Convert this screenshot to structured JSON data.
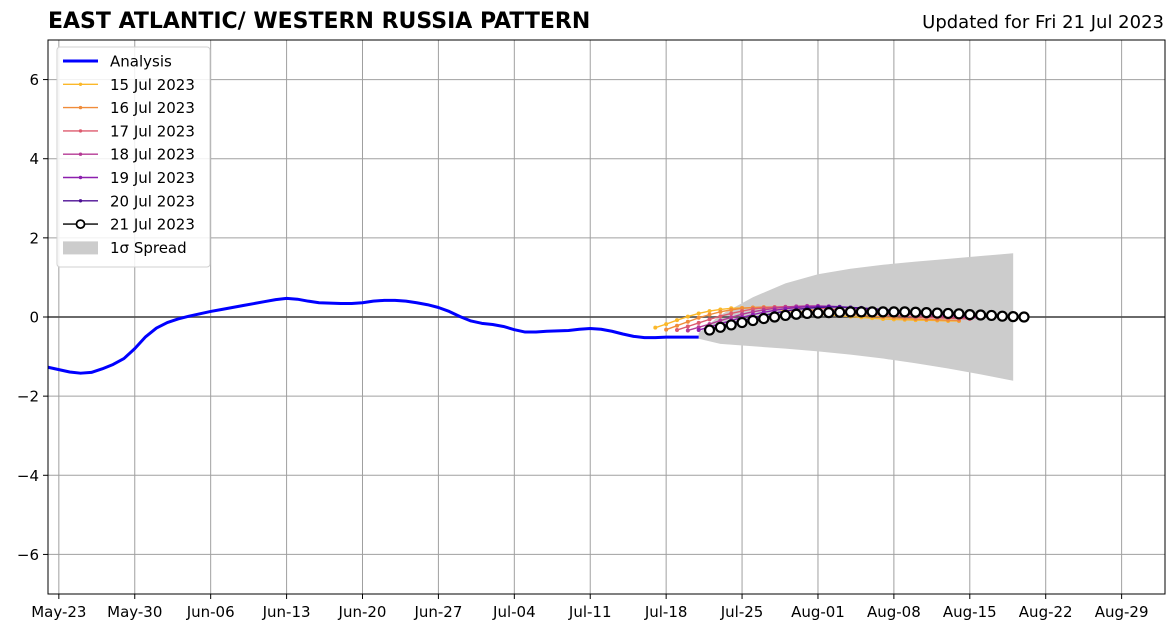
{
  "chart_data": {
    "type": "line",
    "title": "EAST ATLANTIC/ WESTERN RUSSIA PATTERN",
    "subtitle": "Updated for Fri 21 Jul 2023",
    "xlabel": "",
    "ylabel": "",
    "ylim": [
      -7,
      7
    ],
    "xlim": [
      "2023-05-22",
      "2023-09-02"
    ],
    "y_ticks": [
      -6,
      -4,
      -2,
      0,
      2,
      4,
      6
    ],
    "y_tick_labels": [
      "−6",
      "−4",
      "−2",
      "0",
      "2",
      "4",
      "6"
    ],
    "x_ticks": [
      "2023-05-23",
      "2023-05-30",
      "2023-06-06",
      "2023-06-13",
      "2023-06-20",
      "2023-06-27",
      "2023-07-04",
      "2023-07-11",
      "2023-07-18",
      "2023-07-25",
      "2023-08-01",
      "2023-08-08",
      "2023-08-15",
      "2023-08-22",
      "2023-08-29"
    ],
    "x_tick_labels": [
      "May-23",
      "May-30",
      "Jun-06",
      "Jun-13",
      "Jun-20",
      "Jun-27",
      "Jul-04",
      "Jul-11",
      "Jul-18",
      "Jul-25",
      "Aug-01",
      "Aug-08",
      "Aug-15",
      "Aug-22",
      "Aug-29"
    ],
    "grid": true,
    "legend_position": "top-left",
    "analysis": {
      "name": "Analysis",
      "color": "#0000ff",
      "x": [
        "2023-05-22",
        "2023-05-23",
        "2023-05-24",
        "2023-05-25",
        "2023-05-26",
        "2023-05-27",
        "2023-05-28",
        "2023-05-29",
        "2023-05-30",
        "2023-05-31",
        "2023-06-01",
        "2023-06-02",
        "2023-06-03",
        "2023-06-04",
        "2023-06-05",
        "2023-06-06",
        "2023-06-07",
        "2023-06-08",
        "2023-06-09",
        "2023-06-10",
        "2023-06-11",
        "2023-06-12",
        "2023-06-13",
        "2023-06-14",
        "2023-06-15",
        "2023-06-16",
        "2023-06-17",
        "2023-06-18",
        "2023-06-19",
        "2023-06-20",
        "2023-06-21",
        "2023-06-22",
        "2023-06-23",
        "2023-06-24",
        "2023-06-25",
        "2023-06-26",
        "2023-06-27",
        "2023-06-28",
        "2023-06-29",
        "2023-06-30",
        "2023-07-01",
        "2023-07-02",
        "2023-07-03",
        "2023-07-04",
        "2023-07-05",
        "2023-07-06",
        "2023-07-07",
        "2023-07-08",
        "2023-07-09",
        "2023-07-10",
        "2023-07-11",
        "2023-07-12",
        "2023-07-13",
        "2023-07-14",
        "2023-07-15",
        "2023-07-16",
        "2023-07-17",
        "2023-07-18",
        "2023-07-19",
        "2023-07-20",
        "2023-07-21"
      ],
      "values": [
        -1.27,
        -1.33,
        -1.39,
        -1.42,
        -1.4,
        -1.31,
        -1.2,
        -1.05,
        -0.8,
        -0.5,
        -0.28,
        -0.14,
        -0.05,
        0.02,
        0.08,
        0.14,
        0.19,
        0.24,
        0.29,
        0.34,
        0.39,
        0.44,
        0.47,
        0.45,
        0.4,
        0.36,
        0.35,
        0.34,
        0.34,
        0.36,
        0.4,
        0.42,
        0.42,
        0.4,
        0.36,
        0.31,
        0.24,
        0.14,
        0.01,
        -0.1,
        -0.16,
        -0.19,
        -0.24,
        -0.32,
        -0.38,
        -0.38,
        -0.36,
        -0.35,
        -0.34,
        -0.31,
        -0.29,
        -0.31,
        -0.36,
        -0.43,
        -0.49,
        -0.52,
        -0.52,
        -0.51,
        -0.51,
        -0.51,
        -0.51
      ]
    },
    "forecasts": [
      {
        "name": "15 Jul 2023",
        "color": "#fbb829",
        "start": "2023-07-17",
        "values": [
          -0.27,
          -0.18,
          -0.08,
          0.01,
          0.09,
          0.15,
          0.19,
          0.22,
          0.23,
          0.23,
          0.22,
          0.2,
          0.17,
          0.14,
          0.11,
          0.08,
          0.05,
          0.03,
          0.01,
          -0.01,
          -0.03,
          -0.05,
          -0.06,
          -0.07,
          -0.08,
          -0.08,
          -0.09,
          -0.1,
          -0.1
        ]
      },
      {
        "name": "16 Jul 2023",
        "color": "#f08c3a",
        "start": "2023-07-18",
        "values": [
          -0.32,
          -0.22,
          -0.12,
          -0.02,
          0.06,
          0.13,
          0.18,
          0.22,
          0.24,
          0.25,
          0.25,
          0.24,
          0.22,
          0.19,
          0.16,
          0.13,
          0.1,
          0.07,
          0.04,
          0.02,
          0.0,
          -0.02,
          -0.04,
          -0.05,
          -0.06,
          -0.07,
          -0.08,
          -0.09
        ]
      },
      {
        "name": "17 Jul 2023",
        "color": "#dd5a6e",
        "start": "2023-07-19",
        "values": [
          -0.33,
          -0.24,
          -0.15,
          -0.06,
          0.02,
          0.09,
          0.15,
          0.2,
          0.23,
          0.25,
          0.26,
          0.26,
          0.25,
          0.23,
          0.21,
          0.18,
          0.15,
          0.12,
          0.09,
          0.06,
          0.04,
          0.02,
          0.0,
          -0.01,
          -0.02,
          -0.03,
          -0.04,
          -0.05
        ]
      },
      {
        "name": "18 Jul 2023",
        "color": "#b53a95",
        "start": "2023-07-20",
        "values": [
          -0.34,
          -0.26,
          -0.18,
          -0.09,
          -0.01,
          0.07,
          0.13,
          0.18,
          0.22,
          0.25,
          0.27,
          0.28,
          0.28,
          0.27,
          0.25,
          0.23,
          0.2,
          0.17,
          0.14,
          0.11,
          0.08,
          0.06,
          0.04,
          0.02,
          0.01,
          0.0,
          -0.01,
          -0.02
        ]
      },
      {
        "name": "19 Jul 2023",
        "color": "#8c1fae",
        "start": "2023-07-21",
        "values": [
          -0.33,
          -0.25,
          -0.17,
          -0.09,
          -0.01,
          0.06,
          0.12,
          0.17,
          0.21,
          0.24,
          0.26,
          0.27,
          0.27,
          0.26,
          0.24,
          0.22,
          0.19,
          0.17,
          0.14,
          0.12,
          0.1,
          0.08,
          0.06,
          0.05,
          0.04,
          0.03,
          0.02,
          0.01
        ]
      },
      {
        "name": "20 Jul 2023",
        "color": "#4d0f94",
        "start": "2023-07-22",
        "values": [
          -0.3,
          -0.23,
          -0.16,
          -0.09,
          -0.02,
          0.04,
          0.1,
          0.15,
          0.19,
          0.22,
          0.24,
          0.25,
          0.25,
          0.24,
          0.23,
          0.21,
          0.19,
          0.17,
          0.15,
          0.13,
          0.11,
          0.09,
          0.08,
          0.07,
          0.06,
          0.05,
          0.04,
          0.03
        ]
      },
      {
        "name": "21 Jul 2023",
        "color": "#000000",
        "marker": "open-circle",
        "start": "2023-07-22",
        "values": [
          -0.33,
          -0.26,
          -0.2,
          -0.14,
          -0.09,
          -0.04,
          0.0,
          0.04,
          0.07,
          0.09,
          0.1,
          0.11,
          0.12,
          0.13,
          0.13,
          0.13,
          0.13,
          0.13,
          0.13,
          0.12,
          0.11,
          0.1,
          0.09,
          0.08,
          0.06,
          0.05,
          0.04,
          0.02,
          0.01,
          0.0
        ]
      }
    ],
    "spread": {
      "name": "1σ Spread",
      "color": "#cccccc",
      "x": [
        "2023-07-21",
        "2023-07-23",
        "2023-07-26",
        "2023-07-29",
        "2023-08-01",
        "2023-08-04",
        "2023-08-07",
        "2023-08-10",
        "2023-08-13",
        "2023-08-16",
        "2023-08-19"
      ],
      "upper": [
        -0.4,
        0.05,
        0.5,
        0.85,
        1.08,
        1.22,
        1.32,
        1.4,
        1.47,
        1.54,
        1.61
      ],
      "lower": [
        -0.55,
        -0.68,
        -0.74,
        -0.8,
        -0.87,
        -0.95,
        -1.05,
        -1.17,
        -1.3,
        -1.45,
        -1.61
      ]
    }
  }
}
